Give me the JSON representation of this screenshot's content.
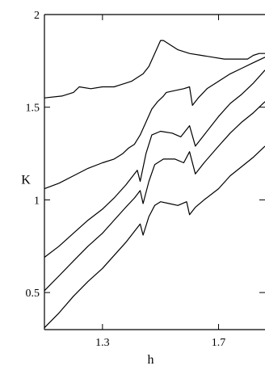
{
  "chart_data": {
    "type": "line",
    "title": "",
    "xlabel": "h",
    "ylabel": "K",
    "xlim": [
      1.1,
      1.86
    ],
    "ylim": [
      0.3,
      2.0
    ],
    "grid": false,
    "legend": "none",
    "x_ticks": [
      {
        "value": 1.3,
        "label": "1.3"
      },
      {
        "value": 1.7,
        "label": "1.7"
      }
    ],
    "y_ticks": [
      {
        "value": 0.5,
        "label": "0.5"
      },
      {
        "value": 1.0,
        "label": "1"
      },
      {
        "value": 1.5,
        "label": "1.5"
      },
      {
        "value": 2.0,
        "label": "2"
      }
    ],
    "series": [
      {
        "x": [
          1.1,
          1.16,
          1.2,
          1.22,
          1.26,
          1.3,
          1.34,
          1.36,
          1.38,
          1.4,
          1.42,
          1.44,
          1.46,
          1.48,
          1.5,
          1.51,
          1.53,
          1.56,
          1.6,
          1.64,
          1.68,
          1.72,
          1.76,
          1.8,
          1.82,
          1.84,
          1.86
        ],
        "y": [
          1.55,
          1.56,
          1.58,
          1.61,
          1.6,
          1.61,
          1.61,
          1.62,
          1.63,
          1.64,
          1.66,
          1.68,
          1.72,
          1.79,
          1.86,
          1.86,
          1.84,
          1.81,
          1.79,
          1.78,
          1.77,
          1.76,
          1.76,
          1.76,
          1.78,
          1.79,
          1.79
        ]
      },
      {
        "x": [
          1.1,
          1.15,
          1.2,
          1.25,
          1.3,
          1.34,
          1.37,
          1.39,
          1.41,
          1.43,
          1.45,
          1.47,
          1.49,
          1.51,
          1.52,
          1.55,
          1.58,
          1.6,
          1.61,
          1.63,
          1.66,
          1.7,
          1.74,
          1.78,
          1.82,
          1.86
        ],
        "y": [
          1.06,
          1.09,
          1.13,
          1.17,
          1.2,
          1.22,
          1.25,
          1.28,
          1.3,
          1.35,
          1.42,
          1.49,
          1.53,
          1.56,
          1.58,
          1.59,
          1.6,
          1.61,
          1.51,
          1.55,
          1.6,
          1.64,
          1.68,
          1.71,
          1.74,
          1.77
        ]
      },
      {
        "x": [
          1.1,
          1.15,
          1.2,
          1.25,
          1.3,
          1.34,
          1.38,
          1.4,
          1.42,
          1.43,
          1.45,
          1.47,
          1.5,
          1.54,
          1.57,
          1.6,
          1.62,
          1.65,
          1.7,
          1.74,
          1.78,
          1.82,
          1.86
        ],
        "y": [
          0.69,
          0.75,
          0.82,
          0.89,
          0.95,
          1.01,
          1.08,
          1.12,
          1.16,
          1.1,
          1.25,
          1.35,
          1.37,
          1.36,
          1.34,
          1.4,
          1.29,
          1.35,
          1.45,
          1.52,
          1.57,
          1.63,
          1.7
        ]
      },
      {
        "x": [
          1.1,
          1.15,
          1.2,
          1.25,
          1.3,
          1.34,
          1.38,
          1.41,
          1.43,
          1.44,
          1.46,
          1.48,
          1.51,
          1.55,
          1.58,
          1.6,
          1.62,
          1.65,
          1.7,
          1.74,
          1.78,
          1.82,
          1.86
        ],
        "y": [
          0.51,
          0.59,
          0.67,
          0.75,
          0.82,
          0.89,
          0.96,
          1.01,
          1.05,
          0.98,
          1.1,
          1.19,
          1.22,
          1.22,
          1.2,
          1.26,
          1.14,
          1.2,
          1.29,
          1.36,
          1.42,
          1.47,
          1.53
        ]
      },
      {
        "x": [
          1.1,
          1.15,
          1.2,
          1.25,
          1.3,
          1.34,
          1.38,
          1.41,
          1.43,
          1.44,
          1.46,
          1.48,
          1.5,
          1.53,
          1.56,
          1.59,
          1.6,
          1.62,
          1.65,
          1.7,
          1.74,
          1.78,
          1.82,
          1.86
        ],
        "y": [
          0.31,
          0.39,
          0.48,
          0.56,
          0.63,
          0.7,
          0.77,
          0.83,
          0.87,
          0.81,
          0.91,
          0.97,
          0.99,
          0.98,
          0.97,
          0.99,
          0.92,
          0.96,
          1.0,
          1.06,
          1.13,
          1.18,
          1.23,
          1.29
        ]
      }
    ]
  }
}
